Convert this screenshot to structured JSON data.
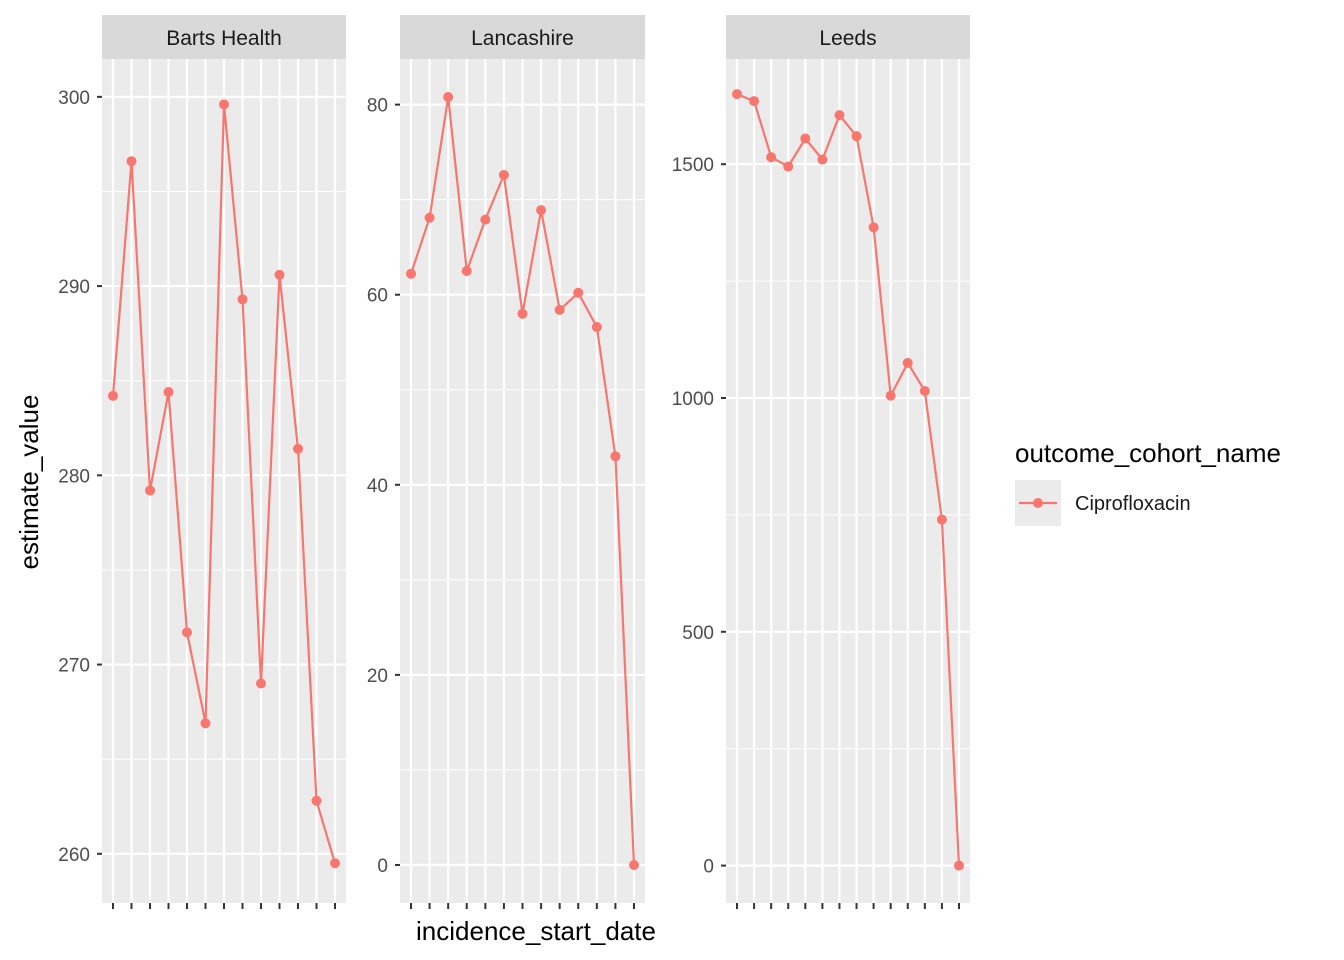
{
  "chart_data": {
    "type": "line",
    "x_field": "incidence_start_date",
    "y_field": "estimate_value",
    "xlabel": "incidence_start_date",
    "ylabel": "estimate_value",
    "x_tick_labels_visible": false,
    "facet_scales": "free_y",
    "grid": true,
    "legend": {
      "title": "outcome_cohort_name",
      "placement": "right",
      "entries": [
        {
          "name": "Ciprofloxacin",
          "color": "#F8766D"
        }
      ]
    },
    "series_color": "#F8766D",
    "panels": [
      {
        "title": "Barts Health",
        "ylim": [
          257.4,
          302.0
        ],
        "yticks": [
          260,
          270,
          280,
          290,
          300
        ],
        "yticks_labels": [
          "260",
          "270",
          "280",
          "290",
          "300"
        ],
        "series": [
          {
            "name": "Ciprofloxacin",
            "values": [
              284.2,
              296.6,
              279.2,
              284.4,
              271.7,
              266.9,
              299.6,
              289.3,
              269.0,
              290.6,
              281.4,
              262.8,
              259.5
            ]
          }
        ]
      },
      {
        "title": "Lancashire",
        "ylim": [
          -4.0,
          84.8
        ],
        "yticks": [
          0,
          20,
          40,
          60,
          80
        ],
        "yticks_labels": [
          "0",
          "20",
          "40",
          "60",
          "80"
        ],
        "series": [
          {
            "name": "Ciprofloxacin",
            "values": [
              62.2,
              68.1,
              80.8,
              62.5,
              67.9,
              72.6,
              58.0,
              68.9,
              58.4,
              60.2,
              56.6,
              43.0,
              0.0
            ]
          }
        ]
      },
      {
        "title": "Leeds",
        "ylim": [
          -80,
          1725
        ],
        "yticks": [
          0,
          500,
          1000,
          1500
        ],
        "yticks_labels": [
          "0",
          "500",
          "1000",
          "1500"
        ],
        "series": [
          {
            "name": "Ciprofloxacin",
            "values": [
              1650,
              1635,
              1515,
              1495,
              1555,
              1510,
              1605,
              1560,
              1365,
              1005,
              1075,
              1015,
              740,
              0
            ]
          }
        ]
      }
    ]
  }
}
